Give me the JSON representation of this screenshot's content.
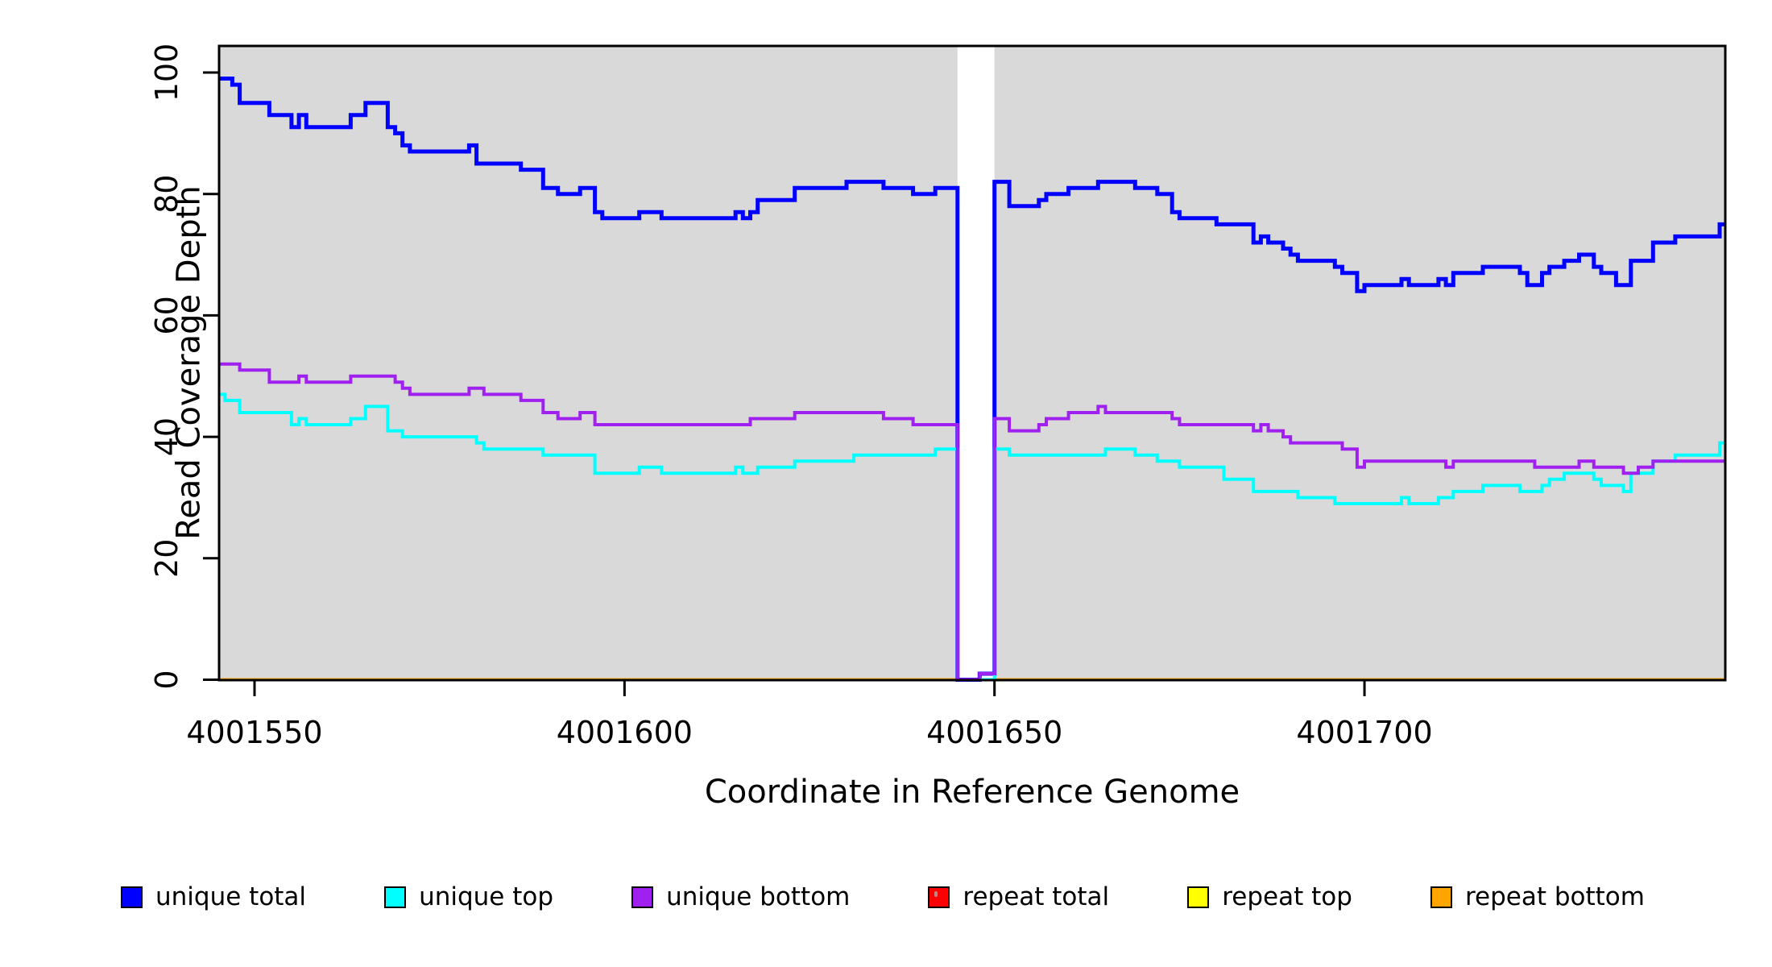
{
  "figure": {
    "ylabel": "Read Coverage Depth",
    "xlabel": "Coordinate in Reference Genome"
  },
  "colors": {
    "unique_total": "#0000ff",
    "unique_top": "#00ffff",
    "unique_bottom": "#a020f0",
    "repeat_total": "#ff0000",
    "repeat_top": "#ffff00",
    "repeat_bottom": "#ffa500",
    "plot_background": "#d9d9d9",
    "gap_band": "#ffffff",
    "axis": "#000000"
  },
  "legend": [
    {
      "label": "unique total",
      "color_key": "unique_total"
    },
    {
      "label": "unique top",
      "color_key": "unique_top"
    },
    {
      "label": "unique bottom",
      "color_key": "unique_bottom"
    },
    {
      "label": "repeat total",
      "color_key": "repeat_total"
    },
    {
      "label": "repeat top",
      "color_key": "repeat_top"
    },
    {
      "label": "repeat bottom",
      "color_key": "repeat_bottom"
    }
  ],
  "chart_data": {
    "type": "line",
    "subtype": "step",
    "title": "",
    "xlabel": "Coordinate in Reference Genome",
    "ylabel": "Read Coverage Depth",
    "x_range": [
      4001545,
      4001749
    ],
    "y_range": [
      0,
      104
    ],
    "grid": false,
    "legend_position": "bottom",
    "x_ticks": [
      {
        "value": 4001550,
        "label": "4001550"
      },
      {
        "value": 4001600,
        "label": "4001600"
      },
      {
        "value": 4001650,
        "label": "4001650"
      },
      {
        "value": 4001700,
        "label": "4001700"
      }
    ],
    "y_ticks": [
      {
        "value": 0,
        "label": "0"
      },
      {
        "value": 20,
        "label": "20"
      },
      {
        "value": 40,
        "label": "40"
      },
      {
        "value": 60,
        "label": "60"
      },
      {
        "value": 80,
        "label": "80"
      },
      {
        "value": 100,
        "label": "100"
      }
    ],
    "coverage_gap": {
      "start": 4001645,
      "end": 4001650
    },
    "series": [
      {
        "name": "repeat total",
        "color_key": "repeat_total",
        "line_width": 4,
        "x_end": 4001749,
        "steps": [
          [
            4001545,
            0
          ]
        ]
      },
      {
        "name": "repeat top",
        "color_key": "repeat_top",
        "line_width": 4,
        "x_end": 4001749,
        "steps": [
          [
            4001545,
            0
          ]
        ]
      },
      {
        "name": "repeat bottom",
        "color_key": "repeat_bottom",
        "line_width": 4,
        "x_end": 4001749,
        "steps": [
          [
            4001545,
            0
          ]
        ]
      },
      {
        "name": "unique total",
        "color_key": "unique_total",
        "line_width": 5,
        "x_end": 4001749,
        "steps": [
          [
            4001545,
            99
          ],
          [
            4001547,
            98
          ],
          [
            4001548,
            95
          ],
          [
            4001552,
            93
          ],
          [
            4001555,
            91
          ],
          [
            4001556,
            93
          ],
          [
            4001557,
            91
          ],
          [
            4001563,
            93
          ],
          [
            4001565,
            95
          ],
          [
            4001568,
            91
          ],
          [
            4001569,
            90
          ],
          [
            4001570,
            88
          ],
          [
            4001571,
            87
          ],
          [
            4001579,
            88
          ],
          [
            4001580,
            85
          ],
          [
            4001586,
            84
          ],
          [
            4001589,
            81
          ],
          [
            4001591,
            80
          ],
          [
            4001594,
            81
          ],
          [
            4001596,
            77
          ],
          [
            4001597,
            76
          ],
          [
            4001602,
            77
          ],
          [
            4001605,
            76
          ],
          [
            4001615,
            77
          ],
          [
            4001616,
            76
          ],
          [
            4001617,
            77
          ],
          [
            4001618,
            79
          ],
          [
            4001623,
            81
          ],
          [
            4001630,
            82
          ],
          [
            4001635,
            81
          ],
          [
            4001639,
            80
          ],
          [
            4001642,
            81
          ],
          [
            4001645,
            0
          ],
          [
            4001648,
            1
          ],
          [
            4001650,
            82
          ],
          [
            4001652,
            78
          ],
          [
            4001656,
            79
          ],
          [
            4001657,
            80
          ],
          [
            4001660,
            81
          ],
          [
            4001664,
            82
          ],
          [
            4001669,
            81
          ],
          [
            4001672,
            80
          ],
          [
            4001674,
            77
          ],
          [
            4001675,
            76
          ],
          [
            4001680,
            75
          ],
          [
            4001685,
            72
          ],
          [
            4001686,
            73
          ],
          [
            4001687,
            72
          ],
          [
            4001689,
            71
          ],
          [
            4001690,
            70
          ],
          [
            4001691,
            69
          ],
          [
            4001696,
            68
          ],
          [
            4001697,
            67
          ],
          [
            4001699,
            64
          ],
          [
            4001700,
            65
          ],
          [
            4001705,
            66
          ],
          [
            4001706,
            65
          ],
          [
            4001710,
            66
          ],
          [
            4001711,
            65
          ],
          [
            4001712,
            67
          ],
          [
            4001716,
            68
          ],
          [
            4001721,
            67
          ],
          [
            4001722,
            65
          ],
          [
            4001724,
            67
          ],
          [
            4001725,
            68
          ],
          [
            4001727,
            69
          ],
          [
            4001729,
            70
          ],
          [
            4001731,
            68
          ],
          [
            4001732,
            67
          ],
          [
            4001734,
            65
          ],
          [
            4001736,
            69
          ],
          [
            4001739,
            72
          ],
          [
            4001742,
            73
          ],
          [
            4001748,
            75
          ]
        ]
      },
      {
        "name": "unique top",
        "color_key": "unique_top",
        "line_width": 4,
        "x_end": 4001749,
        "steps": [
          [
            4001545,
            47
          ],
          [
            4001546,
            46
          ],
          [
            4001548,
            44
          ],
          [
            4001555,
            42
          ],
          [
            4001556,
            43
          ],
          [
            4001557,
            42
          ],
          [
            4001563,
            43
          ],
          [
            4001565,
            45
          ],
          [
            4001568,
            41
          ],
          [
            4001570,
            40
          ],
          [
            4001580,
            39
          ],
          [
            4001581,
            38
          ],
          [
            4001589,
            37
          ],
          [
            4001596,
            34
          ],
          [
            4001602,
            35
          ],
          [
            4001605,
            34
          ],
          [
            4001615,
            35
          ],
          [
            4001616,
            34
          ],
          [
            4001618,
            35
          ],
          [
            4001623,
            36
          ],
          [
            4001631,
            37
          ],
          [
            4001642,
            38
          ],
          [
            4001645,
            0
          ],
          [
            4001650,
            38
          ],
          [
            4001652,
            37
          ],
          [
            4001665,
            38
          ],
          [
            4001669,
            37
          ],
          [
            4001672,
            36
          ],
          [
            4001675,
            35
          ],
          [
            4001681,
            33
          ],
          [
            4001685,
            31
          ],
          [
            4001691,
            30
          ],
          [
            4001696,
            29
          ],
          [
            4001705,
            30
          ],
          [
            4001706,
            29
          ],
          [
            4001710,
            30
          ],
          [
            4001712,
            31
          ],
          [
            4001716,
            32
          ],
          [
            4001721,
            31
          ],
          [
            4001724,
            32
          ],
          [
            4001725,
            33
          ],
          [
            4001727,
            34
          ],
          [
            4001731,
            33
          ],
          [
            4001732,
            32
          ],
          [
            4001735,
            31
          ],
          [
            4001736,
            34
          ],
          [
            4001739,
            36
          ],
          [
            4001742,
            37
          ],
          [
            4001748,
            39
          ]
        ]
      },
      {
        "name": "unique bottom",
        "color_key": "unique_bottom",
        "line_width": 4,
        "x_end": 4001749,
        "steps": [
          [
            4001545,
            52
          ],
          [
            4001548,
            51
          ],
          [
            4001552,
            49
          ],
          [
            4001556,
            50
          ],
          [
            4001557,
            49
          ],
          [
            4001563,
            50
          ],
          [
            4001569,
            49
          ],
          [
            4001570,
            48
          ],
          [
            4001571,
            47
          ],
          [
            4001579,
            48
          ],
          [
            4001581,
            47
          ],
          [
            4001586,
            46
          ],
          [
            4001589,
            44
          ],
          [
            4001591,
            43
          ],
          [
            4001594,
            44
          ],
          [
            4001596,
            42
          ],
          [
            4001617,
            43
          ],
          [
            4001623,
            44
          ],
          [
            4001635,
            43
          ],
          [
            4001639,
            42
          ],
          [
            4001645,
            0
          ],
          [
            4001648,
            1
          ],
          [
            4001650,
            43
          ],
          [
            4001652,
            41
          ],
          [
            4001656,
            42
          ],
          [
            4001657,
            43
          ],
          [
            4001660,
            44
          ],
          [
            4001664,
            45
          ],
          [
            4001665,
            44
          ],
          [
            4001674,
            43
          ],
          [
            4001675,
            42
          ],
          [
            4001685,
            41
          ],
          [
            4001686,
            42
          ],
          [
            4001687,
            41
          ],
          [
            4001689,
            40
          ],
          [
            4001690,
            39
          ],
          [
            4001697,
            38
          ],
          [
            4001699,
            35
          ],
          [
            4001700,
            36
          ],
          [
            4001711,
            35
          ],
          [
            4001712,
            36
          ],
          [
            4001723,
            35
          ],
          [
            4001729,
            36
          ],
          [
            4001731,
            35
          ],
          [
            4001735,
            34
          ],
          [
            4001737,
            35
          ],
          [
            4001739,
            36
          ]
        ]
      }
    ]
  }
}
